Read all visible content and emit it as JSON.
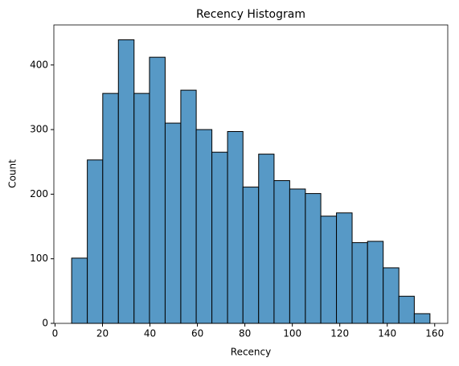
{
  "chart_data": {
    "type": "histogram",
    "title": "Recency Histogram",
    "x_label": "Recency",
    "y_label": "Count",
    "bins": [
      7.0,
      13.6,
      20.1,
      26.7,
      33.3,
      39.8,
      46.4,
      53.0,
      59.5,
      66.1,
      72.7,
      79.2,
      85.8,
      92.3,
      98.9,
      105.5,
      112.0,
      118.6,
      125.2,
      131.7,
      138.3,
      144.9,
      151.4,
      158.0
    ],
    "values": [
      101,
      253,
      356,
      439,
      356,
      412,
      310,
      361,
      300,
      265,
      297,
      211,
      262,
      221,
      208,
      201,
      166,
      171,
      125,
      127,
      86,
      42,
      15
    ],
    "color": "#5799c6",
    "edgecolor": "#000000",
    "xlim": [
      -0.5,
      165.5
    ],
    "xticks": [
      0,
      20,
      40,
      60,
      80,
      100,
      120,
      140,
      160
    ],
    "ylim": [
      0,
      462
    ],
    "yticks": [
      0,
      100,
      200,
      300,
      400
    ]
  }
}
